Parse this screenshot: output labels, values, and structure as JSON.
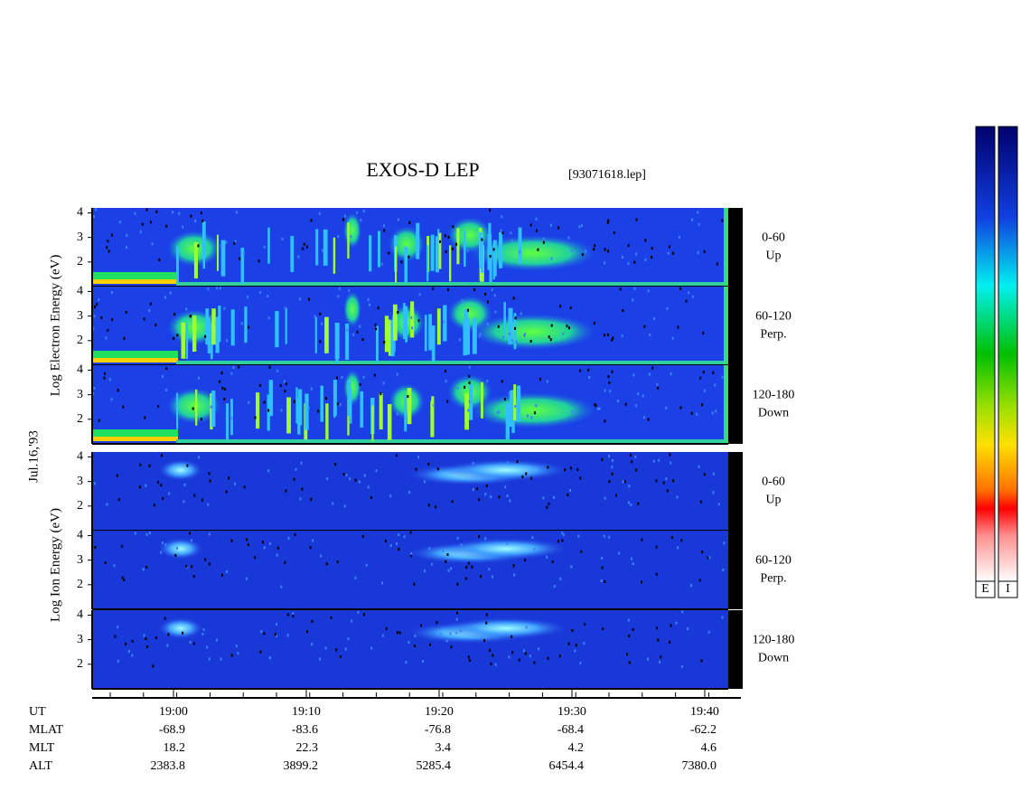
{
  "title": "EXOS-D LEP",
  "file": "[93071618.lep]",
  "electron_axis_label": "Log Electron Energy (eV)",
  "date": "Jul.16,'93",
  "ion_axis_label": "Log Ion Energy (eV)",
  "ylim": [
    1,
    4.2
  ],
  "yticks": [
    2,
    3,
    4
  ],
  "panels": [
    {
      "species": "electron",
      "range": "0-60",
      "direction": "Up"
    },
    {
      "species": "electron",
      "range": "60-120",
      "direction": "Perp."
    },
    {
      "species": "electron",
      "range": "120-180",
      "direction": "Down"
    },
    {
      "species": "ion",
      "range": "0-60",
      "direction": "Up"
    },
    {
      "species": "ion",
      "range": "60-120",
      "direction": "Perp."
    },
    {
      "species": "ion",
      "range": "120-180",
      "direction": "Down"
    }
  ],
  "orbit": {
    "labels": [
      "UT",
      "MLAT",
      "MLT",
      "ALT"
    ],
    "columns": [
      [
        "19:00",
        "-68.9",
        "18.2",
        "2383.8"
      ],
      [
        "19:10",
        "-83.6",
        "22.3",
        "3899.2"
      ],
      [
        "19:20",
        "-76.8",
        "3.4",
        "5285.4"
      ],
      [
        "19:30",
        "-68.4",
        "4.2",
        "6454.4"
      ],
      [
        "19:40",
        "-62.2",
        "4.6",
        "7380.0"
      ]
    ]
  },
  "colorbar_labels": [
    "E",
    "I"
  ]
}
